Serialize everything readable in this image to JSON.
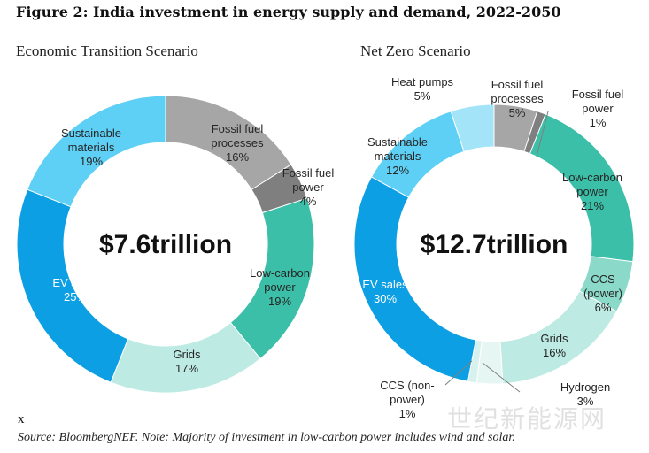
{
  "figure": {
    "title": "Figure 2: India investment in energy supply and demand, 2022-2050",
    "footnote_mark": "x",
    "source": "Source: BloombergNEF. Note: Majority of investment in low-carbon power includes wind and solar.",
    "watermark": "世纪新能源网"
  },
  "chart_data": [
    {
      "type": "pie",
      "title": "Economic Transition Scenario",
      "center_label": "$7.6trillion",
      "slices": [
        {
          "label": [
            "Fossil fuel",
            "processes"
          ],
          "value": 16,
          "value_label": "16%",
          "color": "#a6a6a6"
        },
        {
          "label": [
            "Fossil fuel",
            "power"
          ],
          "value": 4,
          "value_label": "4%",
          "color": "#7f7f7f"
        },
        {
          "label": [
            "Low-carbon",
            "power"
          ],
          "value": 19,
          "value_label": "19%",
          "color": "#3cbfa8"
        },
        {
          "label": [
            "Grids"
          ],
          "value": 17,
          "value_label": "17%",
          "color": "#bdebe3"
        },
        {
          "label": [
            "EV sales"
          ],
          "value": 25,
          "value_label": "25%",
          "color": "#0d9fe3"
        },
        {
          "label": [
            "Sustainable",
            "materials"
          ],
          "value": 19,
          "value_label": "19%",
          "color": "#5fd0f5"
        }
      ]
    },
    {
      "type": "pie",
      "title": "Net Zero Scenario",
      "center_label": "$12.7trillion",
      "slices": [
        {
          "label": [
            "Fossil fuel",
            "processes"
          ],
          "value": 5,
          "value_label": "5%",
          "color": "#a6a6a6"
        },
        {
          "label": [
            "Fossil fuel",
            "power"
          ],
          "value": 1,
          "value_label": "1%",
          "color": "#7f7f7f"
        },
        {
          "label": [
            "Low-carbon",
            "power"
          ],
          "value": 21,
          "value_label": "21%",
          "color": "#3cbfa8"
        },
        {
          "label": [
            "CCS",
            "(power)"
          ],
          "value": 6,
          "value_label": "6%",
          "color": "#8ad9c9"
        },
        {
          "label": [
            "Grids"
          ],
          "value": 16,
          "value_label": "16%",
          "color": "#bdebe3"
        },
        {
          "label": [
            "Hydrogen"
          ],
          "value": 3,
          "value_label": "3%",
          "color": "#e6f7f3"
        },
        {
          "label": [
            "CCS (non-",
            "power)"
          ],
          "value": 1,
          "value_label": "1%",
          "color": "#d6f1ee"
        },
        {
          "label": [
            "EV sales"
          ],
          "value": 30,
          "value_label": "30%",
          "color": "#0d9fe3"
        },
        {
          "label": [
            "Sustainable",
            "materials"
          ],
          "value": 12,
          "value_label": "12%",
          "color": "#5fd0f5"
        },
        {
          "label": [
            "Heat pumps"
          ],
          "value": 5,
          "value_label": "5%",
          "color": "#a3e4f8"
        }
      ]
    }
  ]
}
